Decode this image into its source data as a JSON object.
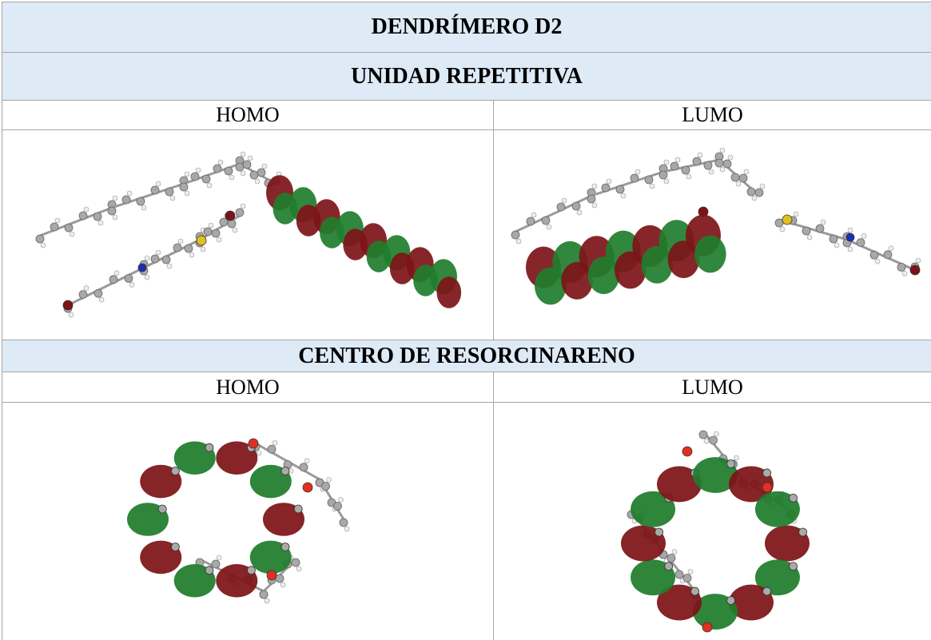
{
  "table": {
    "title": "DENDRÍMERO D2",
    "sections": [
      {
        "heading": "UNIDAD REPETITIVA",
        "columns": [
          "HOMO",
          "LUMO"
        ]
      },
      {
        "heading": "CENTRO DE RESORCINARENO",
        "columns": [
          "HOMO",
          "LUMO"
        ]
      }
    ]
  }
}
